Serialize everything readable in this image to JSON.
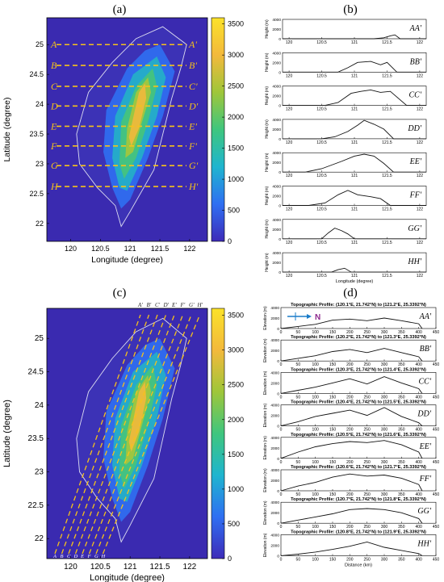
{
  "panels": {
    "a": {
      "label": "(a)"
    },
    "b": {
      "label": "(b)"
    },
    "c": {
      "label": "(c)"
    },
    "d": {
      "label": "(d)"
    }
  },
  "colorbar": {
    "ticks": [
      0,
      500,
      1000,
      1500,
      2000,
      2500,
      3000,
      3500
    ],
    "range": [
      0,
      3600
    ],
    "stops": [
      "#3d2bb8",
      "#2f6ff2",
      "#1fb5cf",
      "#3fc67e",
      "#9fc63a",
      "#f3b93c",
      "#fbe22a"
    ]
  },
  "colors": {
    "background_terrain_low": "#3a2ab0",
    "section_line": "#f6c21a",
    "profile_line": "#111111",
    "north_arrow": "#1a7cc9",
    "north_label": "#8e2a8e"
  },
  "map_a": {
    "xlabel": "Longitude (degree)",
    "ylabel": "Latitude (degree)",
    "xticks": [
      "120",
      "120.5",
      "121",
      "121.5",
      "122"
    ],
    "yticks": [
      "22",
      "22.5",
      "23",
      "23.5",
      "24",
      "24.5",
      "25"
    ],
    "xlim": [
      119.6,
      122.3
    ],
    "ylim": [
      21.7,
      25.45
    ],
    "sections": [
      {
        "left": "A",
        "right": "A'",
        "lat": 25.0
      },
      {
        "left": "B",
        "right": "B'",
        "lat": 24.65
      },
      {
        "left": "C",
        "right": "C'",
        "lat": 24.3
      },
      {
        "left": "D",
        "right": "D'",
        "lat": 23.97
      },
      {
        "left": "E",
        "right": "E'",
        "lat": 23.63
      },
      {
        "left": "F",
        "right": "F'",
        "lat": 23.3
      },
      {
        "left": "G",
        "right": "G'",
        "lat": 22.97
      },
      {
        "left": "H",
        "right": "H'",
        "lat": 22.62
      }
    ]
  },
  "map_c": {
    "xlabel": "Longitude (degree)",
    "ylabel": "Latitude (degree)",
    "xticks": [
      "120",
      "120.5",
      "121",
      "121.5",
      "122"
    ],
    "yticks": [
      "22",
      "22.5",
      "23",
      "23.5",
      "24",
      "24.5",
      "25"
    ],
    "top_labels": [
      "A'",
      "B'",
      "C'",
      "D'",
      "E'",
      "F'",
      "G'",
      "H'"
    ],
    "bottom_labels": [
      "A",
      "B",
      "C",
      "D",
      "E",
      "F",
      "G",
      "H"
    ]
  },
  "chart_data": [
    {
      "type": "line",
      "panel": "b",
      "xlabel": "Longitude (degree)",
      "ylabel": "Height (m)",
      "xlim": [
        119.9,
        122.1
      ],
      "ylim": [
        0,
        4000
      ],
      "xticks": [
        "120",
        "120.5",
        "121",
        "121.5",
        "122"
      ],
      "yticks": [
        "0",
        "2000",
        "4000"
      ],
      "series": [
        {
          "name": "AA'",
          "x": [
            119.9,
            121.3,
            121.45,
            121.55,
            121.62,
            121.7,
            122.1
          ],
          "y": [
            0,
            0,
            200,
            600,
            800,
            0,
            0
          ]
        },
        {
          "name": "BB'",
          "x": [
            119.9,
            120.75,
            120.9,
            121.05,
            121.25,
            121.4,
            121.5,
            121.65,
            122.1
          ],
          "y": [
            0,
            0,
            900,
            2000,
            2200,
            1500,
            2000,
            0,
            0
          ]
        },
        {
          "name": "CC'",
          "x": [
            119.9,
            120.55,
            120.75,
            120.95,
            121.1,
            121.25,
            121.4,
            121.55,
            121.8,
            122.1
          ],
          "y": [
            0,
            0,
            600,
            2500,
            2900,
            3200,
            2700,
            2900,
            0,
            0
          ]
        },
        {
          "name": "DD'",
          "x": [
            119.9,
            120.5,
            120.7,
            120.9,
            121.05,
            121.15,
            121.3,
            121.45,
            121.6,
            122.1
          ],
          "y": [
            0,
            0,
            400,
            1500,
            2800,
            3800,
            3000,
            2000,
            0,
            0
          ]
        },
        {
          "name": "EE'",
          "x": [
            119.9,
            120.25,
            120.5,
            120.8,
            121.0,
            121.15,
            121.3,
            121.45,
            121.6,
            122.1
          ],
          "y": [
            0,
            0,
            700,
            2200,
            3300,
            3700,
            3300,
            1800,
            0,
            0
          ]
        },
        {
          "name": "FF'",
          "x": [
            119.9,
            120.3,
            120.55,
            120.75,
            120.9,
            121.05,
            121.25,
            121.4,
            121.55,
            122.1
          ],
          "y": [
            0,
            0,
            500,
            2200,
            3100,
            2200,
            1800,
            1400,
            0,
            0
          ]
        },
        {
          "name": "GG'",
          "x": [
            119.9,
            120.5,
            120.6,
            120.7,
            120.8,
            120.9,
            121.0,
            122.1
          ],
          "y": [
            0,
            0,
            1200,
            2200,
            1700,
            1000,
            0,
            0
          ]
        },
        {
          "name": "HH'",
          "x": [
            119.9,
            120.65,
            120.75,
            120.85,
            120.95,
            122.1
          ],
          "y": [
            0,
            0,
            500,
            800,
            0,
            0
          ]
        }
      ]
    },
    {
      "type": "line",
      "panel": "d",
      "xlabel": "Distance (km)",
      "ylabel": "Elevation (m)",
      "xlim": [
        0,
        450
      ],
      "ylim": [
        0,
        4000
      ],
      "xticks": [
        "0",
        "50",
        "100",
        "150",
        "200",
        "250",
        "300",
        "350",
        "400",
        "450"
      ],
      "yticks": [
        "0",
        "2000",
        "4000"
      ],
      "north_label": "N",
      "series": [
        {
          "name": "AA'",
          "subtitle": "Topographic Profile: (120.1°E, 21.742°N) to (121.2°E, 25.3392°N)",
          "x": [
            0,
            50,
            100,
            150,
            200,
            250,
            300,
            350,
            400,
            410
          ],
          "y": [
            0,
            400,
            800,
            1600,
            1800,
            1500,
            2000,
            1500,
            900,
            0
          ]
        },
        {
          "name": "BB'",
          "subtitle": "Topographic Profile: (120.2°E, 21.742°N) to (121.3°E, 25.3392°N)",
          "x": [
            0,
            50,
            100,
            150,
            200,
            250,
            300,
            350,
            400,
            410
          ],
          "y": [
            0,
            500,
            1000,
            1800,
            2200,
            1600,
            2400,
            1600,
            800,
            0
          ]
        },
        {
          "name": "CC'",
          "subtitle": "Topographic Profile: (120.3°E, 21.742°N) to (121.4°E, 25.3392°N)",
          "x": [
            0,
            50,
            100,
            150,
            200,
            250,
            300,
            350,
            400,
            410
          ],
          "y": [
            0,
            600,
            1200,
            2000,
            2800,
            1800,
            3200,
            2000,
            900,
            0
          ]
        },
        {
          "name": "DD'",
          "subtitle": "Topographic Profile: (120.4°E, 21.742°N) to (121.5°E, 25.3392°N)",
          "x": [
            0,
            50,
            100,
            150,
            200,
            250,
            300,
            350,
            400,
            410
          ],
          "y": [
            0,
            800,
            1800,
            2400,
            3000,
            2000,
            3500,
            1800,
            600,
            0
          ]
        },
        {
          "name": "EE'",
          "subtitle": "Topographic Profile: (120.5°E, 21.742°N) to (121.6°E, 25.3392°N)",
          "x": [
            0,
            50,
            100,
            150,
            200,
            250,
            300,
            350,
            400,
            410
          ],
          "y": [
            0,
            1200,
            2200,
            2800,
            3200,
            3000,
            3400,
            2600,
            1200,
            0
          ]
        },
        {
          "name": "FF'",
          "subtitle": "Topographic Profile: (120.6°E, 21.742°N) to (121.7°E, 25.3392°N)",
          "x": [
            0,
            50,
            100,
            150,
            200,
            250,
            300,
            350,
            400,
            410
          ],
          "y": [
            0,
            900,
            1600,
            2600,
            3200,
            2800,
            3000,
            2400,
            1200,
            0
          ]
        },
        {
          "name": "GG'",
          "subtitle": "Topographic Profile: (120.7°E, 21.742°N) to (121.8°E, 25.3392°N)",
          "x": [
            0,
            50,
            100,
            150,
            200,
            250,
            300,
            350,
            400,
            410
          ],
          "y": [
            0,
            600,
            1200,
            1800,
            2600,
            2800,
            2600,
            2000,
            900,
            0
          ]
        },
        {
          "name": "HH'",
          "subtitle": "Topographic Profile: (120.8°E, 21.742°N) to (121.9°E, 25.3392°N)",
          "x": [
            0,
            50,
            100,
            150,
            200,
            250,
            300,
            350,
            400,
            410
          ],
          "y": [
            0,
            300,
            700,
            1200,
            1800,
            2600,
            1600,
            1000,
            400,
            0
          ]
        }
      ]
    }
  ]
}
